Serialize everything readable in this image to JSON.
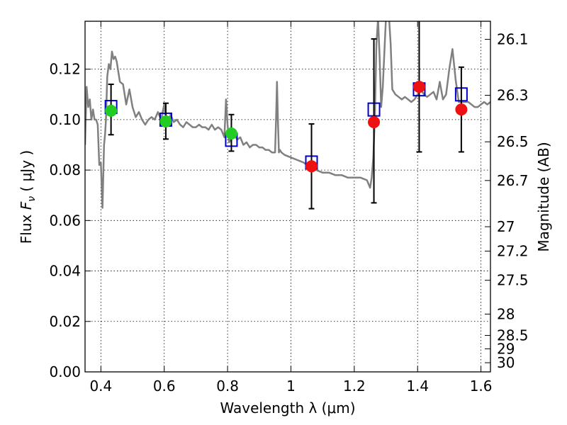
{
  "chart_data": {
    "type": "scatter",
    "xlabel": "Wavelength  λ (μm)",
    "ylabel_prefix": "Flux ",
    "ylabel_symbol": "F",
    "ylabel_subscript": "ν",
    "ylabel_suffix": " ( μJy )",
    "y2label": "Magnitude (AB)",
    "xlim": [
      0.35,
      1.63
    ],
    "ylim": [
      0.0,
      0.139
    ],
    "x_ticks": [
      0.4,
      0.6,
      0.8,
      1.0,
      1.2,
      1.4,
      1.6
    ],
    "x_tick_labels": [
      "0.4",
      "0.6",
      "0.8",
      "1",
      "1.2",
      "1.4",
      "1.6"
    ],
    "y_ticks": [
      0.0,
      0.02,
      0.04,
      0.06,
      0.08,
      0.1,
      0.12
    ],
    "y_tick_labels": [
      "0.00",
      "0.02",
      "0.04",
      "0.06",
      "0.08",
      "0.10",
      "0.12"
    ],
    "mag_ticks": [
      26.1,
      26.3,
      26.5,
      26.7,
      27,
      27.2,
      27.5,
      28,
      28.5,
      29,
      30
    ],
    "mag_tick_labels": [
      "26.1",
      "26.3",
      "26.5",
      "26.7",
      "27",
      "27.2",
      "27.5",
      "28",
      "28.5",
      "29",
      "30"
    ],
    "grid": true,
    "colors": {
      "model": "#808080",
      "model_points": "#0000cc",
      "optical_points": "#22cc22",
      "nir_points": "#ee1111",
      "errorbar": "#000000"
    },
    "series": [
      {
        "marker": "line",
        "x": [
          0.35,
          0.355,
          0.36,
          0.365,
          0.37,
          0.375,
          0.38,
          0.385,
          0.39,
          0.395,
          0.4,
          0.405,
          0.41,
          0.413,
          0.416,
          0.42,
          0.425,
          0.43,
          0.435,
          0.44,
          0.445,
          0.45,
          0.455,
          0.46,
          0.47,
          0.48,
          0.49,
          0.5,
          0.51,
          0.52,
          0.53,
          0.54,
          0.55,
          0.56,
          0.57,
          0.58,
          0.59,
          0.6,
          0.61,
          0.62,
          0.63,
          0.64,
          0.65,
          0.66,
          0.67,
          0.68,
          0.69,
          0.7,
          0.71,
          0.72,
          0.73,
          0.74,
          0.75,
          0.76,
          0.77,
          0.78,
          0.79,
          0.795,
          0.8,
          0.805,
          0.81,
          0.82,
          0.83,
          0.84,
          0.85,
          0.86,
          0.87,
          0.88,
          0.89,
          0.9,
          0.91,
          0.92,
          0.93,
          0.94,
          0.95,
          0.953,
          0.956,
          0.959,
          0.962,
          0.965,
          0.97,
          0.98,
          1.0,
          1.02,
          1.04,
          1.06,
          1.08,
          1.1,
          1.12,
          1.14,
          1.16,
          1.18,
          1.2,
          1.22,
          1.24,
          1.25,
          1.255,
          1.26,
          1.265,
          1.27,
          1.275,
          1.28,
          1.285,
          1.29,
          1.3,
          1.31,
          1.315,
          1.32,
          1.33,
          1.34,
          1.35,
          1.36,
          1.37,
          1.38,
          1.39,
          1.4,
          1.41,
          1.42,
          1.43,
          1.44,
          1.45,
          1.46,
          1.47,
          1.48,
          1.49,
          1.5,
          1.51,
          1.52,
          1.53,
          1.54,
          1.55,
          1.56,
          1.57,
          1.58,
          1.59,
          1.6,
          1.61,
          1.62,
          1.63
        ],
        "y": [
          0.09,
          0.113,
          0.105,
          0.108,
          0.1,
          0.104,
          0.1,
          0.1,
          0.098,
          0.082,
          0.083,
          0.065,
          0.09,
          0.094,
          0.1,
          0.117,
          0.122,
          0.12,
          0.127,
          0.124,
          0.125,
          0.123,
          0.119,
          0.115,
          0.114,
          0.106,
          0.112,
          0.105,
          0.101,
          0.103,
          0.1,
          0.098,
          0.1,
          0.101,
          0.1,
          0.103,
          0.1,
          0.106,
          0.098,
          0.102,
          0.099,
          0.1,
          0.098,
          0.097,
          0.099,
          0.098,
          0.097,
          0.097,
          0.098,
          0.097,
          0.097,
          0.096,
          0.098,
          0.096,
          0.097,
          0.096,
          0.093,
          0.108,
          0.098,
          0.091,
          0.092,
          0.095,
          0.092,
          0.093,
          0.09,
          0.091,
          0.089,
          0.09,
          0.09,
          0.089,
          0.089,
          0.088,
          0.088,
          0.087,
          0.087,
          0.1,
          0.115,
          0.1,
          0.087,
          0.088,
          0.087,
          0.086,
          0.085,
          0.084,
          0.083,
          0.081,
          0.08,
          0.079,
          0.079,
          0.078,
          0.078,
          0.077,
          0.077,
          0.077,
          0.076,
          0.073,
          0.077,
          0.085,
          0.101,
          0.13,
          0.14,
          0.125,
          0.105,
          0.113,
          0.14,
          0.14,
          0.13,
          0.112,
          0.11,
          0.109,
          0.108,
          0.109,
          0.108,
          0.107,
          0.108,
          0.11,
          0.112,
          0.11,
          0.109,
          0.11,
          0.111,
          0.108,
          0.115,
          0.108,
          0.11,
          0.12,
          0.128,
          0.116,
          0.107,
          0.107,
          0.107,
          0.107,
          0.106,
          0.105,
          0.105,
          0.106,
          0.107,
          0.106,
          0.107
        ]
      },
      {
        "marker": "square",
        "x": [
          0.432,
          0.605,
          0.812,
          1.065,
          1.262,
          1.405,
          1.538
        ],
        "y": [
          0.105,
          0.1,
          0.092,
          0.083,
          0.104,
          0.112,
          0.11
        ]
      },
      {
        "marker": "circle-optical",
        "x": [
          0.432,
          0.605,
          0.812
        ],
        "y": [
          0.1035,
          0.0993,
          0.0945
        ],
        "yerr_low": [
          0.0095,
          0.007,
          0.007
        ],
        "yerr_high": [
          0.0105,
          0.0072,
          0.0075
        ]
      },
      {
        "marker": "circle-nir",
        "x": [
          1.065,
          1.262,
          1.405,
          1.538
        ],
        "y": [
          0.0815,
          0.099,
          0.113,
          0.104
        ],
        "yerr_low": [
          0.0168,
          0.032,
          0.0258,
          0.0168
        ],
        "yerr_high": [
          0.0168,
          0.033,
          0.029,
          0.0168
        ]
      }
    ]
  }
}
